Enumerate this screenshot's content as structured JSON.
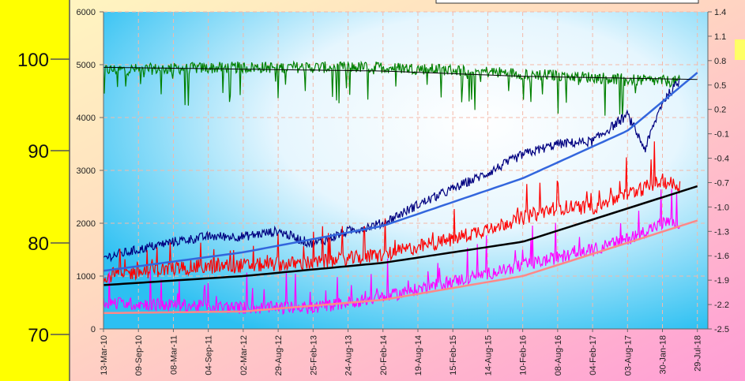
{
  "chart_data": {
    "type": "line",
    "title": "",
    "x_tick_labels": [
      "13-Mar-10",
      "09-Sep-10",
      "08-Mar-11",
      "04-Sep-11",
      "02-Mar-12",
      "29-Aug-12",
      "25-Feb-13",
      "24-Aug-13",
      "20-Feb-14",
      "19-Aug-14",
      "15-Feb-15",
      "14-Aug-15",
      "10-Feb-16",
      "08-Aug-16",
      "04-Feb-17",
      "03-Aug-17",
      "30-Jan-18",
      "29-Jul-18"
    ],
    "left_axis": {
      "ticks": [
        0,
        1000,
        2000,
        3000,
        4000,
        5000,
        6000
      ],
      "ylim": [
        0,
        6000
      ]
    },
    "outer_left_axis": {
      "ticks": [
        70,
        80,
        90,
        100
      ]
    },
    "right_axis": {
      "ticks": [
        1.4,
        1.1,
        0.8,
        0.5,
        0.2,
        -0.1,
        -0.4,
        -0.7,
        -1.0,
        -1.3,
        -1.6,
        -1.9,
        -2.2,
        -2.5
      ],
      "ylim": [
        -2.5,
        1.4
      ]
    },
    "series": [
      {
        "color": "#008000",
        "kind": "noisy",
        "approx_points": [
          [
            0,
            4900
          ],
          [
            4,
            4950
          ],
          [
            8,
            4950
          ],
          [
            10,
            4900
          ],
          [
            12,
            4830
          ],
          [
            14,
            4760
          ],
          [
            15.5,
            4700
          ],
          [
            16.5,
            4680
          ]
        ]
      },
      {
        "color": "#000080",
        "kind": "noisy",
        "approx_points": [
          [
            0,
            1350
          ],
          [
            1,
            1500
          ],
          [
            2,
            1650
          ],
          [
            3,
            1750
          ],
          [
            4,
            1750
          ],
          [
            5,
            1850
          ],
          [
            6,
            1600
          ],
          [
            7,
            1850
          ],
          [
            8,
            2000
          ],
          [
            9,
            2350
          ],
          [
            10,
            2650
          ],
          [
            11,
            2950
          ],
          [
            12,
            3300
          ],
          [
            13,
            3500
          ],
          [
            14,
            3550
          ],
          [
            15,
            4050
          ],
          [
            15.5,
            3400
          ],
          [
            16,
            4300
          ],
          [
            16.5,
            4700
          ]
        ]
      },
      {
        "color": "#FF0000",
        "kind": "noisy",
        "approx_points": [
          [
            0,
            1000
          ],
          [
            2,
            1150
          ],
          [
            4,
            1200
          ],
          [
            6,
            1250
          ],
          [
            8,
            1400
          ],
          [
            10,
            1700
          ],
          [
            11,
            1900
          ],
          [
            12,
            2100
          ],
          [
            13,
            2300
          ],
          [
            14,
            2300
          ],
          [
            15,
            2550
          ],
          [
            16,
            2800
          ],
          [
            16.5,
            2700
          ]
        ]
      },
      {
        "color": "#FF00FF",
        "kind": "noisy",
        "approx_points": [
          [
            0,
            500
          ],
          [
            2,
            450
          ],
          [
            4,
            400
          ],
          [
            6,
            400
          ],
          [
            8,
            600
          ],
          [
            10,
            900
          ],
          [
            12,
            1200
          ],
          [
            14,
            1500
          ],
          [
            15,
            1700
          ],
          [
            16,
            2000
          ],
          [
            16.5,
            2000
          ]
        ]
      },
      {
        "color": "#000000",
        "kind": "trend",
        "approx_points": [
          [
            0,
            830
          ],
          [
            4,
            1000
          ],
          [
            8,
            1250
          ],
          [
            12,
            1650
          ],
          [
            17,
            2700
          ]
        ]
      },
      {
        "color": "#3366DD",
        "kind": "trend",
        "approx_points": [
          [
            0,
            1100
          ],
          [
            4,
            1450
          ],
          [
            8,
            1950
          ],
          [
            12,
            2850
          ],
          [
            15,
            3750
          ],
          [
            17,
            4850
          ]
        ]
      },
      {
        "color": "#FF8888",
        "kind": "trend",
        "approx_points": [
          [
            0,
            300
          ],
          [
            4,
            330
          ],
          [
            8,
            550
          ],
          [
            12,
            1000
          ],
          [
            17,
            2050
          ]
        ]
      },
      {
        "color": "#000000",
        "kind": "trend",
        "approx_points": [
          [
            0,
            4950
          ],
          [
            8,
            4880
          ],
          [
            12,
            4780
          ],
          [
            17,
            4720
          ]
        ]
      }
    ]
  }
}
